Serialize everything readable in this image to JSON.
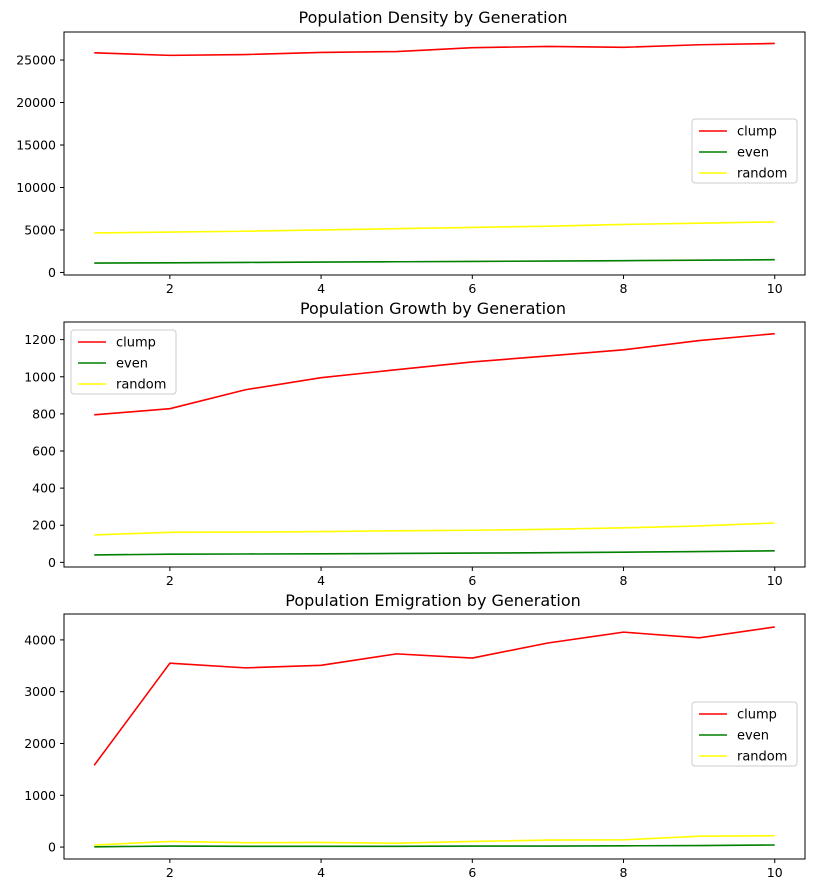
{
  "figure": {
    "colors": {
      "clump": "#ff0000",
      "even": "#008000",
      "random": "#ffff00",
      "axis": "#000000",
      "legend_border": "#cccccc"
    }
  },
  "chart_data": [
    {
      "type": "line",
      "title": "Population Density by Generation",
      "xlabel": "",
      "ylabel": "",
      "x": [
        1,
        2,
        3,
        4,
        5,
        6,
        7,
        8,
        9,
        10
      ],
      "xlim": [
        0.6,
        10.4
      ],
      "ylim": [
        -300,
        28300
      ],
      "xticks": [
        2,
        4,
        6,
        8,
        10
      ],
      "yticks": [
        0,
        5000,
        10000,
        15000,
        20000,
        25000
      ],
      "legend_location": "center-right",
      "series": [
        {
          "name": "clump",
          "color": "#ff0000",
          "values": [
            25850,
            25550,
            25650,
            25900,
            26000,
            26450,
            26600,
            26500,
            26800,
            26950
          ]
        },
        {
          "name": "even",
          "color": "#008000",
          "values": [
            1100,
            1140,
            1180,
            1220,
            1260,
            1300,
            1340,
            1390,
            1440,
            1500
          ]
        },
        {
          "name": "random",
          "color": "#ffff00",
          "values": [
            4650,
            4750,
            4850,
            5000,
            5150,
            5300,
            5450,
            5650,
            5800,
            5950
          ]
        }
      ]
    },
    {
      "type": "line",
      "title": "Population Growth by Generation",
      "xlabel": "",
      "ylabel": "",
      "x": [
        1,
        2,
        3,
        4,
        5,
        6,
        7,
        8,
        9,
        10
      ],
      "xlim": [
        0.6,
        10.4
      ],
      "ylim": [
        -25,
        1295
      ],
      "xticks": [
        2,
        4,
        6,
        8,
        10
      ],
      "yticks": [
        0,
        200,
        400,
        600,
        800,
        1000,
        1200
      ],
      "legend_location": "top-left",
      "series": [
        {
          "name": "clump",
          "color": "#ff0000",
          "values": [
            795,
            828,
            930,
            995,
            1038,
            1080,
            1112,
            1145,
            1195,
            1232
          ]
        },
        {
          "name": "even",
          "color": "#008000",
          "values": [
            40,
            44,
            45,
            46,
            48,
            50,
            52,
            55,
            58,
            62
          ]
        },
        {
          "name": "random",
          "color": "#ffff00",
          "values": [
            148,
            162,
            163,
            166,
            170,
            173,
            178,
            186,
            196,
            212
          ]
        }
      ]
    },
    {
      "type": "line",
      "title": "Population Emigration by Generation",
      "xlabel": "",
      "ylabel": "",
      "x": [
        1,
        2,
        3,
        4,
        5,
        6,
        7,
        8,
        9,
        10
      ],
      "xlim": [
        0.6,
        10.4
      ],
      "ylim": [
        -230,
        4500
      ],
      "xticks": [
        2,
        4,
        6,
        8,
        10
      ],
      "yticks": [
        0,
        1000,
        2000,
        3000,
        4000
      ],
      "legend_location": "center-right",
      "series": [
        {
          "name": "clump",
          "color": "#ff0000",
          "values": [
            1580,
            3550,
            3460,
            3510,
            3730,
            3650,
            3940,
            4150,
            4040,
            4250
          ]
        },
        {
          "name": "even",
          "color": "#008000",
          "values": [
            5,
            20,
            15,
            15,
            15,
            20,
            20,
            25,
            30,
            40
          ]
        },
        {
          "name": "random",
          "color": "#ffff00",
          "values": [
            40,
            110,
            85,
            90,
            75,
            110,
            135,
            140,
            210,
            220
          ]
        }
      ]
    }
  ]
}
